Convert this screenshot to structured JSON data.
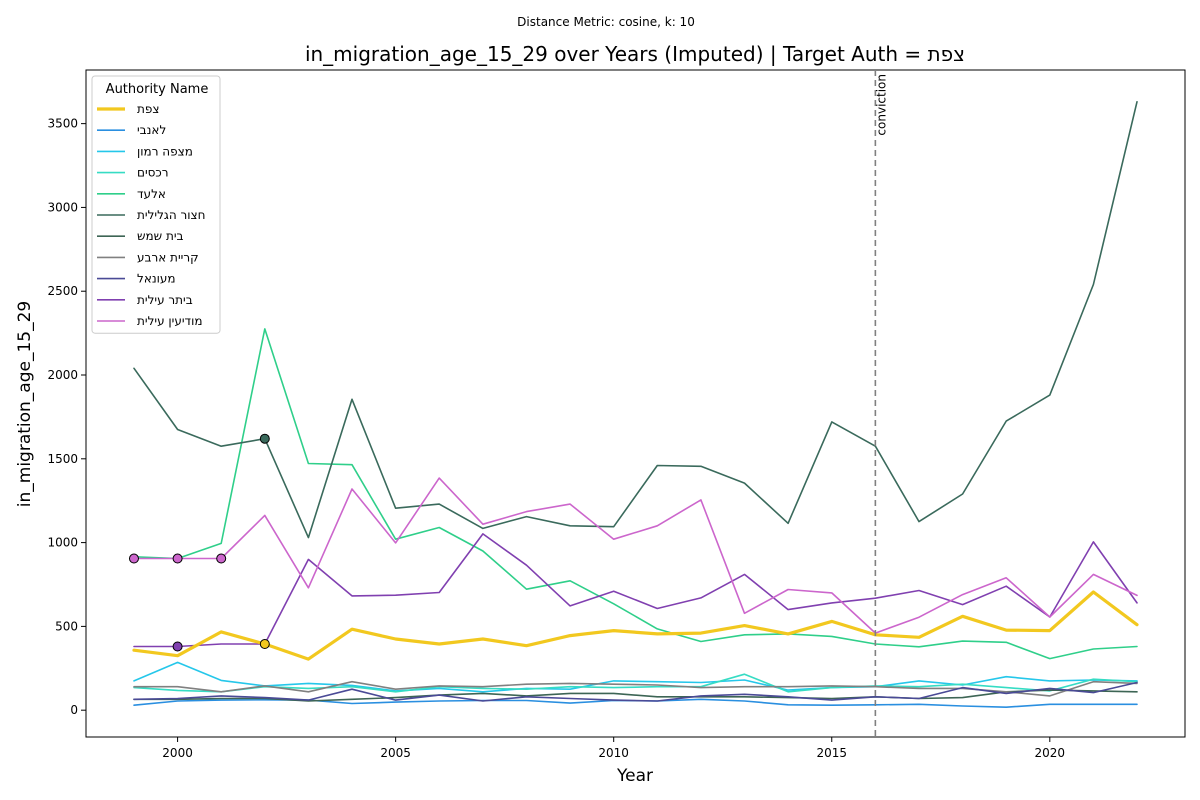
{
  "chart_data": {
    "type": "line",
    "suptitle": "Distance Metric: cosine, k: 10",
    "title": "in_migration_age_15_29 over Years (Imputed) | Target Auth = צפת",
    "xlabel": "Year",
    "ylabel": "in_migration_age_15_29",
    "xlim": [
      1997.9,
      2023.1
    ],
    "ylim": [
      -160,
      3820
    ],
    "xticks": [
      2000,
      2005,
      2010,
      2015,
      2020
    ],
    "yticks": [
      0,
      500,
      1000,
      1500,
      2000,
      2500,
      3000,
      3500
    ],
    "grid": false,
    "legend": {
      "title": "Authority Name",
      "placement": "top-left"
    },
    "x": [
      1999,
      2000,
      2001,
      2002,
      2003,
      2004,
      2005,
      2006,
      2007,
      2008,
      2009,
      2010,
      2011,
      2012,
      2013,
      2014,
      2015,
      2016,
      2017,
      2018,
      2019,
      2020,
      2021,
      2022
    ],
    "vline": {
      "x": 2016,
      "label": "conviction",
      "color": "#808080"
    },
    "series": [
      {
        "name": "צפת",
        "color": "#f2c81f",
        "width": 3.2,
        "values": [
          358,
          325,
          467,
          395,
          305,
          483,
          425,
          395,
          425,
          385,
          445,
          475,
          455,
          460,
          505,
          455,
          530,
          450,
          435,
          560,
          478,
          475,
          705,
          510
        ]
      },
      {
        "name": "לאנבי",
        "color": "#2a8fe0",
        "width": 1.6,
        "values": [
          30,
          55,
          60,
          62,
          60,
          40,
          48,
          55,
          58,
          58,
          42,
          58,
          55,
          65,
          55,
          32,
          30,
          32,
          35,
          25,
          18,
          35,
          35,
          35
        ]
      },
      {
        "name": "מצפה רמון",
        "color": "#25c7ea",
        "width": 1.6,
        "values": [
          175,
          285,
          178,
          145,
          160,
          148,
          115,
          130,
          110,
          130,
          125,
          175,
          170,
          165,
          180,
          120,
          135,
          140,
          175,
          150,
          200,
          175,
          180,
          175
        ]
      },
      {
        "name": "רכסים",
        "color": "#36dcc4",
        "width": 1.6,
        "values": [
          135,
          118,
          110,
          140,
          130,
          140,
          110,
          140,
          130,
          125,
          140,
          135,
          140,
          140,
          215,
          110,
          135,
          145,
          140,
          155,
          135,
          115,
          185,
          170
        ]
      },
      {
        "name": "אלעד",
        "color": "#2fcf8a",
        "width": 1.6,
        "values": [
          915,
          905,
          995,
          2275,
          1472,
          1465,
          1020,
          1090,
          950,
          722,
          772,
          635,
          485,
          410,
          450,
          455,
          440,
          395,
          378,
          412,
          405,
          308,
          365,
          380
        ]
      },
      {
        "name": "חצור הגלילית",
        "color": "#3a6a5c",
        "width": 1.6,
        "values": [
          2040,
          1675,
          1575,
          1620,
          1030,
          1855,
          1205,
          1230,
          1085,
          1155,
          1100,
          1095,
          1460,
          1455,
          1355,
          1115,
          1720,
          1575,
          1125,
          1290,
          1725,
          1880,
          2540,
          3630
        ]
      },
      {
        "name": "בית שמש",
        "color": "#3d6555",
        "width": 1.6,
        "values": [
          65,
          65,
          70,
          70,
          55,
          65,
          75,
          90,
          100,
          85,
          100,
          100,
          80,
          80,
          80,
          75,
          70,
          80,
          70,
          75,
          110,
          120,
          115,
          110
        ]
      },
      {
        "name": "קריית ארבע",
        "color": "#808080",
        "width": 1.6,
        "values": [
          140,
          140,
          110,
          145,
          110,
          170,
          125,
          145,
          140,
          155,
          160,
          155,
          150,
          135,
          140,
          140,
          145,
          140,
          130,
          130,
          110,
          85,
          170,
          160
        ]
      },
      {
        "name": "מעונאל",
        "color": "#4a4a96",
        "width": 1.6,
        "values": [
          65,
          70,
          85,
          75,
          60,
          125,
          60,
          90,
          55,
          80,
          70,
          60,
          55,
          85,
          95,
          80,
          60,
          80,
          70,
          135,
          100,
          130,
          105,
          165
        ]
      },
      {
        "name": "ביתר עילית",
        "color": "#8040b0",
        "width": 1.6,
        "values": [
          380,
          380,
          395,
          395,
          900,
          682,
          686,
          702,
          1052,
          865,
          622,
          710,
          607,
          670,
          810,
          600,
          640,
          668,
          714,
          630,
          740,
          556,
          1004,
          640
        ]
      },
      {
        "name": "מודיעין עילית",
        "color": "#cc66cc",
        "width": 1.6,
        "values": [
          905,
          905,
          905,
          1162,
          730,
          1320,
          998,
          1385,
          1110,
          1185,
          1230,
          1020,
          1100,
          1255,
          578,
          720,
          700,
          460,
          555,
          690,
          790,
          556,
          810,
          685
        ]
      }
    ],
    "imputed_markers": [
      {
        "x": 1999,
        "y": 905,
        "color": "#cc66cc"
      },
      {
        "x": 2000,
        "y": 905,
        "color": "#cc66cc"
      },
      {
        "x": 2001,
        "y": 905,
        "color": "#cc66cc"
      },
      {
        "x": 2000,
        "y": 380,
        "color": "#8040b0"
      },
      {
        "x": 2002,
        "y": 1620,
        "color": "#3a6a5c"
      },
      {
        "x": 2002,
        "y": 395,
        "color": "#f2c81f"
      }
    ]
  }
}
